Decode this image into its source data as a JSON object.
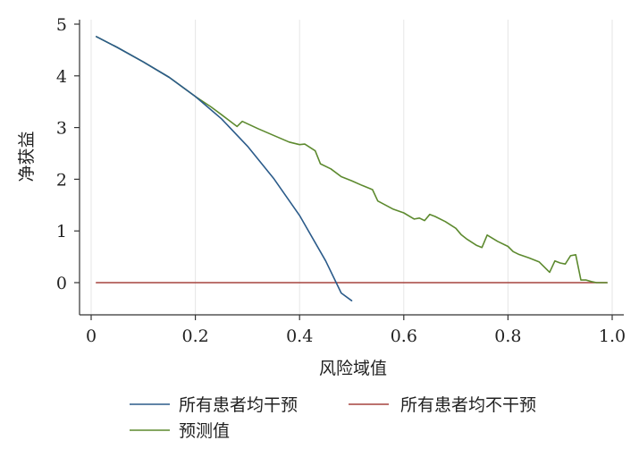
{
  "chart_data": {
    "type": "line",
    "title": "",
    "xlabel": "风险域值",
    "ylabel": "净获益",
    "xlim": [
      0,
      1.0
    ],
    "ylim": [
      -0.6,
      5.0
    ],
    "x_ticks": [
      0,
      0.2,
      0.4,
      0.6,
      0.8,
      1.0
    ],
    "x_tick_labels": [
      "0",
      "0.2",
      "0.4",
      "0.6",
      "0.8",
      "1.0"
    ],
    "y_ticks": [
      0,
      1,
      2,
      3,
      4,
      5
    ],
    "y_tick_labels": [
      "0",
      "1",
      "2",
      "3",
      "4",
      "5"
    ],
    "grid": "vertical",
    "legend_position": "bottom",
    "series": [
      {
        "name": "所有患者均干预",
        "color": "#2b5b8a",
        "x": [
          0.01,
          0.05,
          0.1,
          0.15,
          0.2,
          0.25,
          0.3,
          0.35,
          0.4,
          0.45,
          0.48,
          0.5
        ],
        "y": [
          4.76,
          4.55,
          4.27,
          3.97,
          3.6,
          3.17,
          2.64,
          2.02,
          1.3,
          0.42,
          -0.2,
          -0.35
        ]
      },
      {
        "name": "所有患者均不干预",
        "color": "#a5443f",
        "x": [
          0.01,
          0.99
        ],
        "y": [
          0,
          0
        ]
      },
      {
        "name": "预测值",
        "color": "#5d8a2f",
        "x": [
          0.01,
          0.05,
          0.1,
          0.15,
          0.18,
          0.2,
          0.23,
          0.25,
          0.28,
          0.29,
          0.32,
          0.35,
          0.38,
          0.4,
          0.41,
          0.43,
          0.44,
          0.46,
          0.48,
          0.5,
          0.52,
          0.54,
          0.55,
          0.58,
          0.6,
          0.62,
          0.63,
          0.64,
          0.65,
          0.66,
          0.68,
          0.7,
          0.71,
          0.72,
          0.74,
          0.75,
          0.76,
          0.78,
          0.8,
          0.81,
          0.82,
          0.84,
          0.86,
          0.87,
          0.88,
          0.89,
          0.9,
          0.91,
          0.92,
          0.93,
          0.94,
          0.95,
          0.96,
          0.97,
          0.99
        ],
        "y": [
          4.76,
          4.55,
          4.27,
          3.97,
          3.75,
          3.6,
          3.4,
          3.25,
          3.02,
          3.12,
          2.98,
          2.85,
          2.72,
          2.67,
          2.68,
          2.55,
          2.3,
          2.2,
          2.05,
          1.97,
          1.88,
          1.8,
          1.58,
          1.42,
          1.35,
          1.23,
          1.25,
          1.2,
          1.32,
          1.28,
          1.18,
          1.05,
          0.93,
          0.85,
          0.72,
          0.68,
          0.92,
          0.8,
          0.7,
          0.6,
          0.55,
          0.48,
          0.4,
          0.3,
          0.2,
          0.42,
          0.38,
          0.36,
          0.52,
          0.54,
          0.05,
          0.05,
          0.02,
          0,
          0
        ]
      }
    ]
  }
}
